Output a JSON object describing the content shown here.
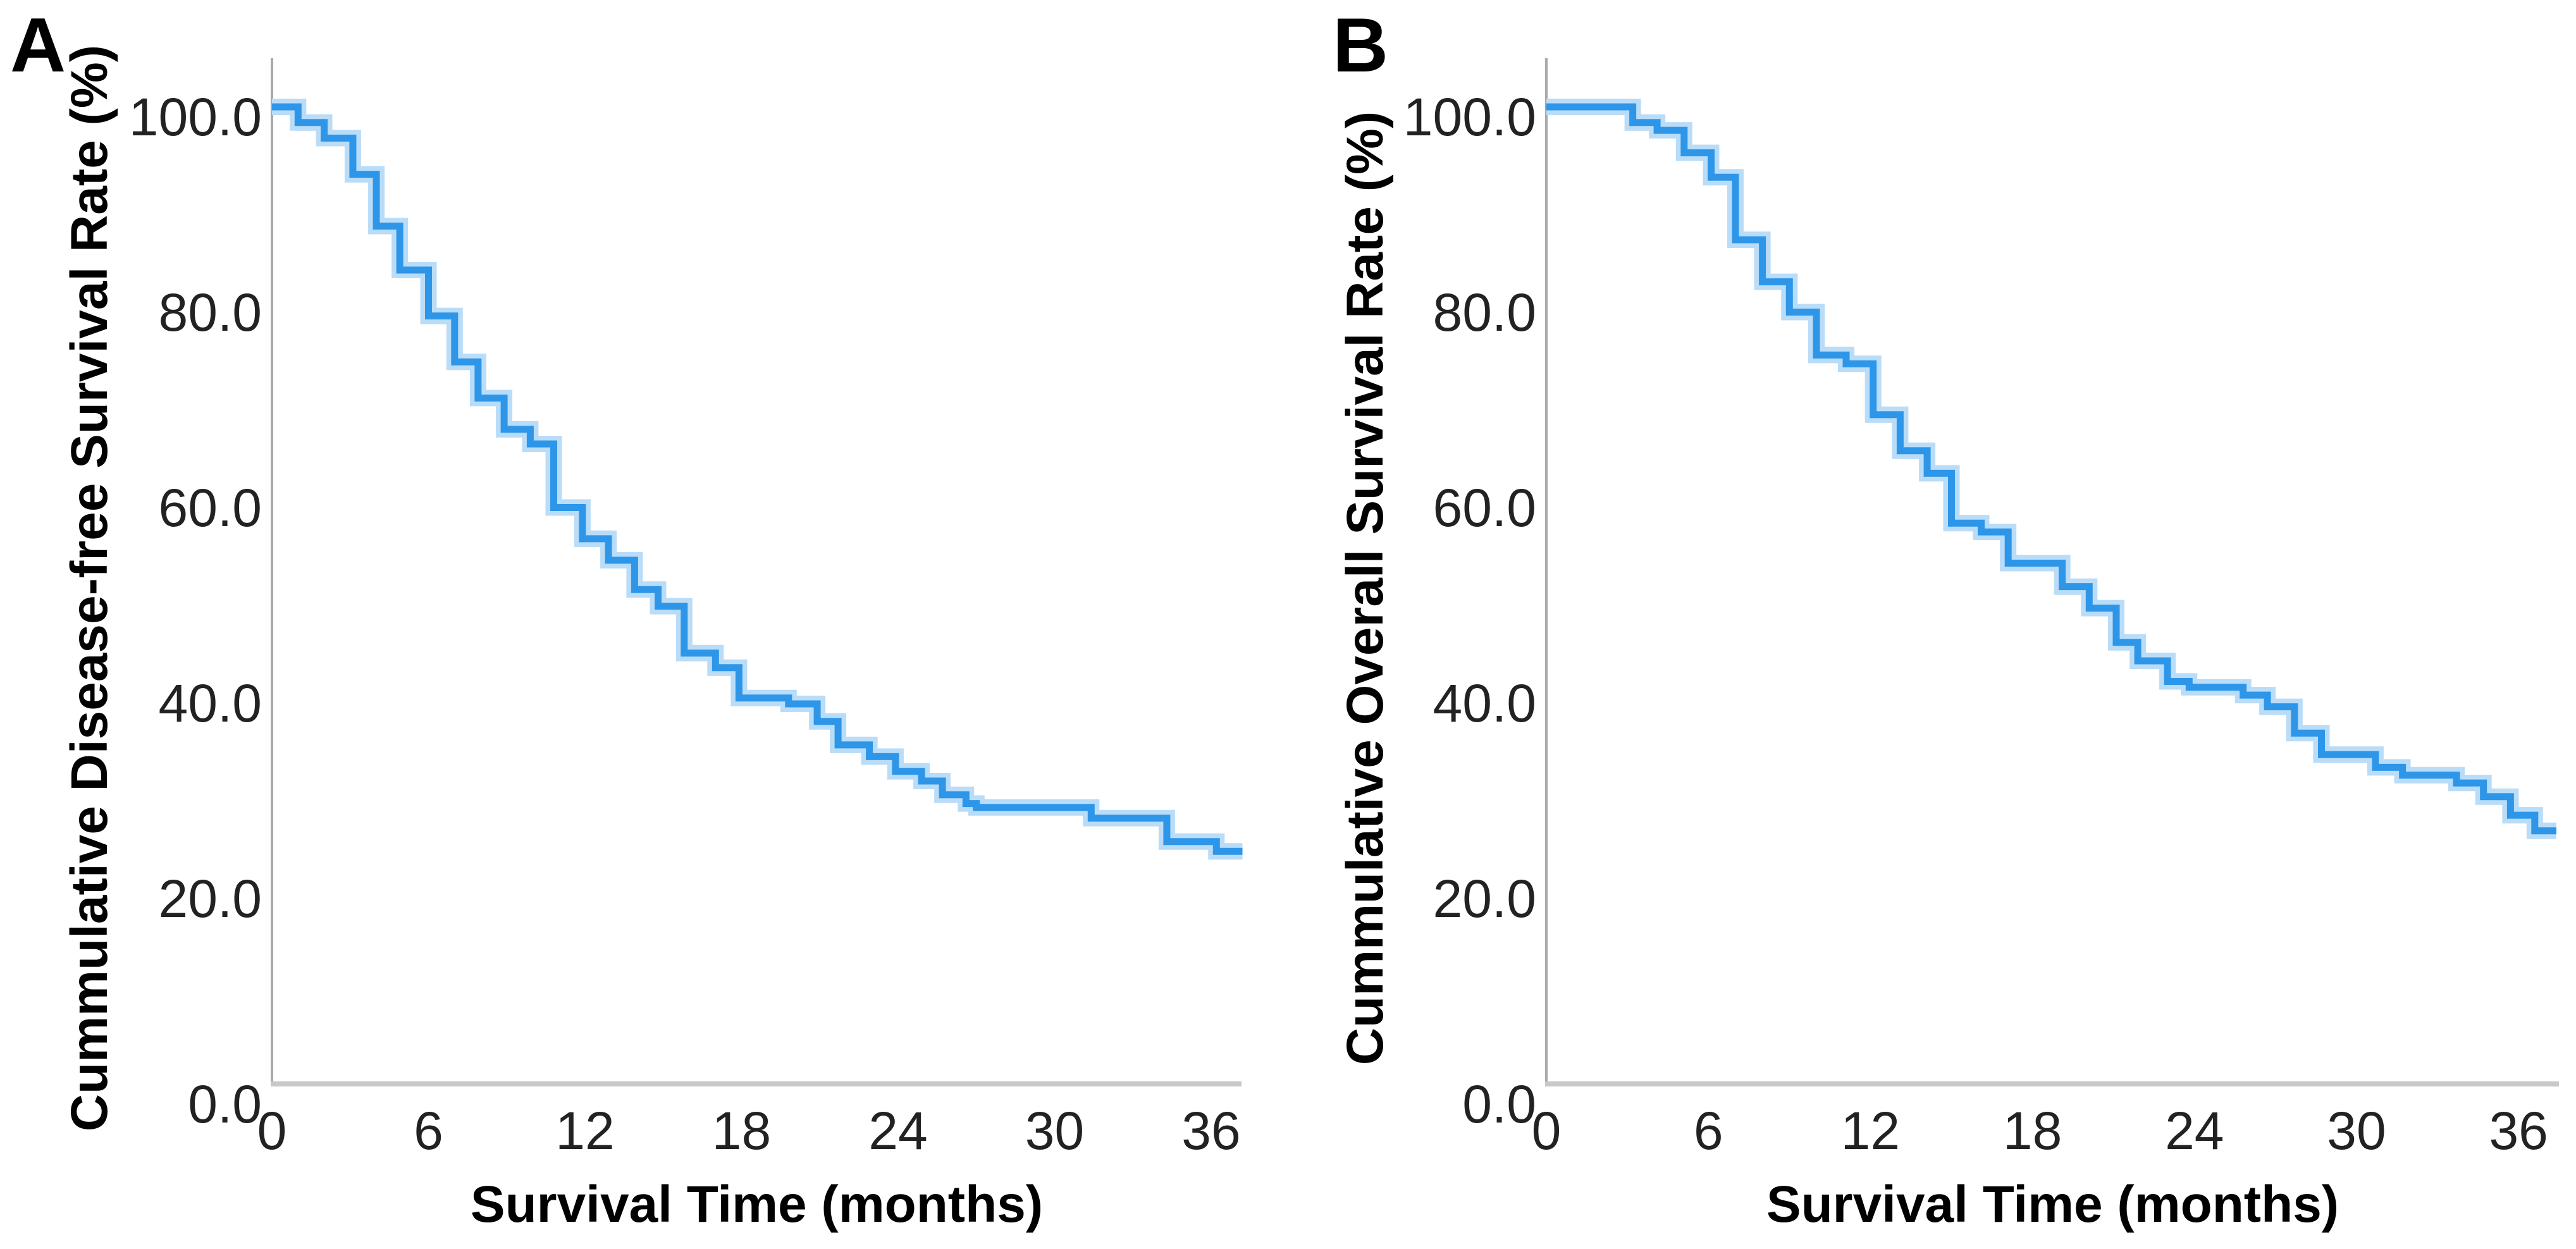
{
  "figure": {
    "background": "#ffffff"
  },
  "chart_data": [
    {
      "type": "line",
      "subtype": "kaplan-meier-step",
      "panel_label": "A",
      "title": "",
      "xlabel": "Survival Time (months)",
      "ylabel": "Cummulative Disease-free Survival Rate (%)",
      "x_tick_values": [
        0,
        6,
        12,
        18,
        24,
        30,
        36
      ],
      "x_tick_labels": [
        "0",
        "6",
        "12",
        "18",
        "24",
        "30",
        "36"
      ],
      "y_tick_values": [
        100,
        80,
        60,
        40,
        20,
        0
      ],
      "y_tick_labels": [
        "100.0",
        "80.0",
        "60.0",
        "40.0",
        "20.0",
        "0.0"
      ],
      "xlim": [
        0,
        38
      ],
      "ylim": [
        0,
        104
      ],
      "grid": false,
      "legend": "none",
      "line_color": "#2E96E8",
      "halo_color": "#B9DCF8",
      "curve_end_month": 37.2,
      "steps": [
        [
          0,
          100.0
        ],
        [
          1.0,
          98.4
        ],
        [
          2.0,
          96.8
        ],
        [
          3.1,
          93.1
        ],
        [
          4.0,
          87.8
        ],
        [
          4.9,
          83.3
        ],
        [
          6.0,
          78.6
        ],
        [
          7.0,
          73.9
        ],
        [
          7.9,
          70.2
        ],
        [
          8.9,
          67.0
        ],
        [
          9.9,
          65.5
        ],
        [
          10.8,
          59.0
        ],
        [
          11.9,
          55.8
        ],
        [
          12.9,
          53.6
        ],
        [
          13.9,
          50.6
        ],
        [
          14.8,
          48.9
        ],
        [
          15.8,
          44.1
        ],
        [
          17.0,
          42.6
        ],
        [
          17.9,
          39.5
        ],
        [
          19.8,
          38.9
        ],
        [
          20.9,
          37.1
        ],
        [
          21.7,
          34.7
        ],
        [
          22.9,
          33.5
        ],
        [
          23.9,
          32.0
        ],
        [
          24.9,
          31.0
        ],
        [
          25.7,
          29.6
        ],
        [
          26.6,
          28.7
        ],
        [
          27.0,
          28.3
        ],
        [
          31.4,
          27.2
        ],
        [
          34.3,
          24.8
        ],
        [
          36.2,
          23.8
        ]
      ]
    },
    {
      "type": "line",
      "subtype": "kaplan-meier-step",
      "panel_label": "B",
      "title": "",
      "xlabel": "Survival Time (months)",
      "ylabel": "Cummulative Overall Survival Rate (%)",
      "x_tick_values": [
        0,
        6,
        12,
        18,
        24,
        30,
        36
      ],
      "x_tick_labels": [
        "0",
        "6",
        "12",
        "18",
        "24",
        "30",
        "36"
      ],
      "y_tick_values": [
        100,
        80,
        60,
        40,
        20,
        0
      ],
      "y_tick_labels": [
        "100.0",
        "80.0",
        "60.0",
        "40.0",
        "20.0",
        "0.0"
      ],
      "xlim": [
        0,
        38
      ],
      "ylim": [
        0,
        104
      ],
      "grid": false,
      "legend": "none",
      "line_color": "#2E96E8",
      "halo_color": "#B9DCF8",
      "curve_end_month": 37.4,
      "steps": [
        [
          0,
          100.0
        ],
        [
          3.2,
          98.4
        ],
        [
          4.1,
          97.6
        ],
        [
          5.1,
          95.3
        ],
        [
          6.1,
          92.8
        ],
        [
          7.0,
          86.4
        ],
        [
          8.0,
          82.1
        ],
        [
          9.0,
          79.0
        ],
        [
          10.0,
          74.6
        ],
        [
          11.1,
          73.7
        ],
        [
          12.1,
          68.5
        ],
        [
          13.1,
          64.8
        ],
        [
          14.1,
          62.5
        ],
        [
          15.0,
          57.4
        ],
        [
          16.1,
          56.5
        ],
        [
          17.1,
          53.3
        ],
        [
          19.1,
          50.9
        ],
        [
          20.1,
          48.7
        ],
        [
          21.1,
          45.2
        ],
        [
          21.9,
          43.3
        ],
        [
          23.0,
          41.2
        ],
        [
          23.8,
          40.6
        ],
        [
          25.8,
          39.8
        ],
        [
          26.7,
          38.6
        ],
        [
          27.7,
          35.9
        ],
        [
          28.7,
          33.7
        ],
        [
          30.7,
          32.4
        ],
        [
          31.7,
          31.6
        ],
        [
          33.7,
          30.8
        ],
        [
          34.7,
          29.4
        ],
        [
          35.7,
          27.5
        ],
        [
          36.6,
          25.9
        ]
      ]
    }
  ]
}
